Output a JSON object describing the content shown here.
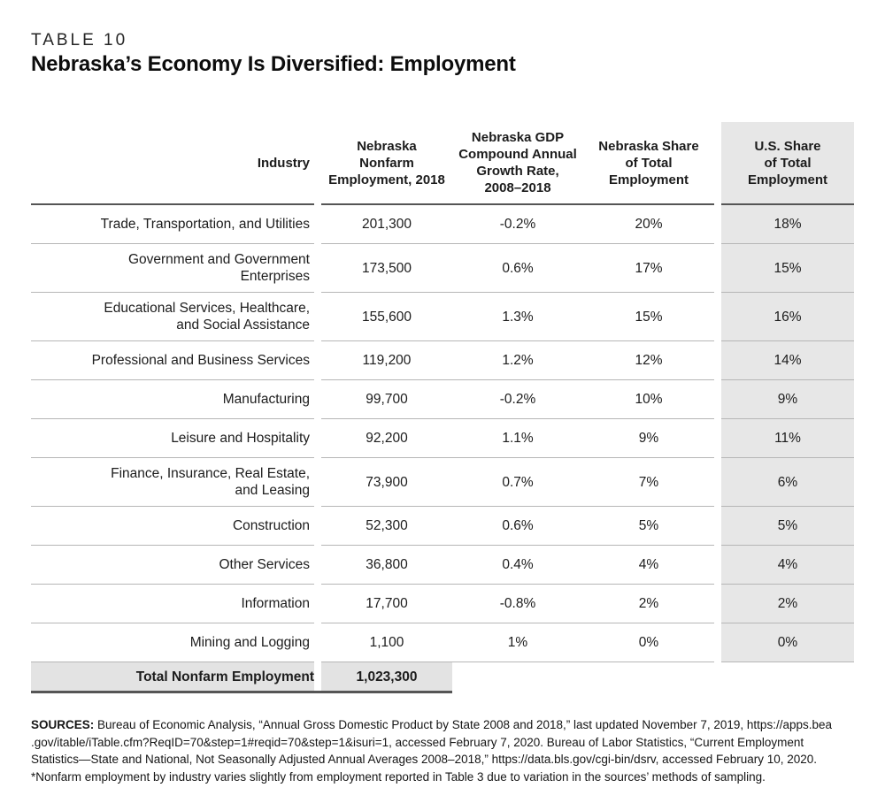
{
  "page": {
    "eyebrow": "TABLE 10",
    "title": "Nebraska’s Economy Is Diversified: Employment"
  },
  "table": {
    "columns": [
      {
        "label": "Industry"
      },
      {
        "label": "Nebraska\nNonfarm\nEmployment, 2018"
      },
      {
        "label": "Nebraska GDP\nCompound Annual\nGrowth Rate,\n2008–2018"
      },
      {
        "label": "Nebraska Share\nof Total\nEmployment"
      },
      {
        "label": "U.S. Share\nof Total\nEmployment"
      }
    ],
    "rows": [
      {
        "industry": "Trade, Transportation, and Utilities",
        "employment": "201,300",
        "growth": "-0.2%",
        "ne_share": "20%",
        "us_share": "18%"
      },
      {
        "industry": "Government and Government\nEnterprises",
        "employment": "173,500",
        "growth": "0.6%",
        "ne_share": "17%",
        "us_share": "15%"
      },
      {
        "industry": "Educational Services, Healthcare,\nand Social Assistance",
        "employment": "155,600",
        "growth": "1.3%",
        "ne_share": "15%",
        "us_share": "16%"
      },
      {
        "industry": "Professional and Business Services",
        "employment": "119,200",
        "growth": "1.2%",
        "ne_share": "12%",
        "us_share": "14%"
      },
      {
        "industry": "Manufacturing",
        "employment": "99,700",
        "growth": "-0.2%",
        "ne_share": "10%",
        "us_share": "9%"
      },
      {
        "industry": "Leisure and Hospitality",
        "employment": "92,200",
        "growth": "1.1%",
        "ne_share": "9%",
        "us_share": "11%"
      },
      {
        "industry": "Finance, Insurance, Real Estate,\nand Leasing",
        "employment": "73,900",
        "growth": "0.7%",
        "ne_share": "7%",
        "us_share": "6%"
      },
      {
        "industry": "Construction",
        "employment": "52,300",
        "growth": "0.6%",
        "ne_share": "5%",
        "us_share": "5%"
      },
      {
        "industry": "Other Services",
        "employment": "36,800",
        "growth": "0.4%",
        "ne_share": "4%",
        "us_share": "4%"
      },
      {
        "industry": "Information",
        "employment": "17,700",
        "growth": "-0.8%",
        "ne_share": "2%",
        "us_share": "2%"
      },
      {
        "industry": "Mining and Logging",
        "employment": "1,100",
        "growth": "1%",
        "ne_share": "0%",
        "us_share": "0%"
      }
    ],
    "total": {
      "label": "Total Nonfarm Employment",
      "value": "1,023,300"
    }
  },
  "footer": {
    "sources_label": "SOURCES:",
    "sources_text": " Bureau of Economic Analysis, “Annual Gross Domestic Product by State 2008 and 2018,” last updated November 7, 2019, https://apps.bea\n.gov/itable/iTable.cfm?ReqID=70&step=1#reqid=70&step=1&isuri=1, accessed February 7, 2020. Bureau of Labor Statistics, “Current Employment\nStatistics—State and National, Not Seasonally Adjusted Annual Averages 2008–2018,” https://data.bls.gov/cgi-bin/dsrv, accessed February 10, 2020.",
    "note": "*Nonfarm employment by industry varies slightly from employment reported in Table 3 due to variation in the sources’ methods of sampling."
  },
  "colors": {
    "text": "#1c1c1c",
    "shaded_column_bg": "#e7e7e7",
    "total_row_bg": "#e3e3e3",
    "row_divider": "#b6b6b6",
    "dark_rule": "#555555"
  }
}
